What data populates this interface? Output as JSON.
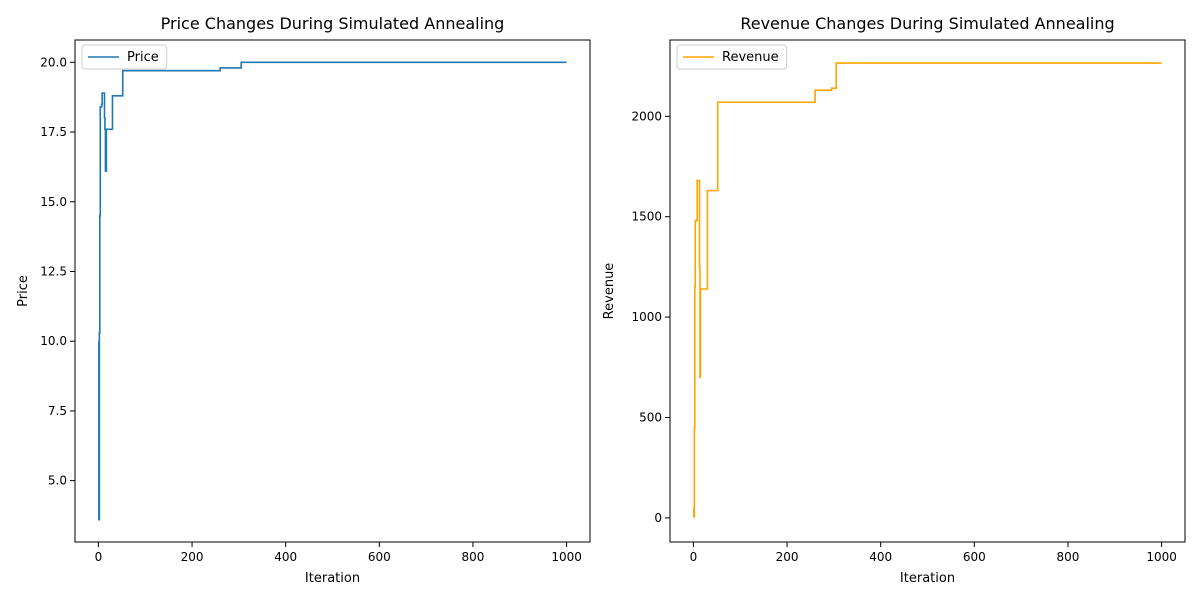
{
  "chart_data": [
    {
      "type": "line",
      "title": "Price Changes During Simulated Annealing",
      "xlabel": "Iteration",
      "ylabel": "Price",
      "xlim": [
        -50,
        1050
      ],
      "ylim": [
        2.8,
        20.8
      ],
      "xticks": [
        0,
        200,
        400,
        600,
        800,
        1000
      ],
      "yticks": [
        5.0,
        7.5,
        10.0,
        12.5,
        15.0,
        17.5,
        20.0
      ],
      "ytick_decimals": 1,
      "grid": false,
      "legend": "upper left",
      "color": "#1f77b4",
      "series": [
        {
          "name": "Price",
          "step": true,
          "points": [
            [
              0,
              10.0
            ],
            [
              1,
              3.6
            ],
            [
              2,
              10.3
            ],
            [
              3,
              14.5
            ],
            [
              4,
              18.4
            ],
            [
              7,
              18.5
            ],
            [
              8,
              18.9
            ],
            [
              12,
              18.9
            ],
            [
              13,
              18.0
            ],
            [
              14,
              17.6
            ],
            [
              15,
              16.1
            ],
            [
              17,
              17.6
            ],
            [
              30,
              18.8
            ],
            [
              52,
              19.7
            ],
            [
              260,
              19.8
            ],
            [
              305,
              20.0
            ],
            [
              1000,
              20.0
            ]
          ]
        }
      ]
    },
    {
      "type": "line",
      "title": "Revenue Changes During Simulated Annealing",
      "xlabel": "Iteration",
      "ylabel": "Revenue",
      "xlim": [
        -50,
        1050
      ],
      "ylim": [
        -120,
        2380
      ],
      "xticks": [
        0,
        200,
        400,
        600,
        800,
        1000
      ],
      "yticks": [
        0,
        500,
        1000,
        1500,
        2000
      ],
      "ytick_decimals": 0,
      "grid": false,
      "legend": "upper left",
      "color": "#ffa500",
      "series": [
        {
          "name": "Revenue",
          "step": true,
          "points": [
            [
              0,
              50
            ],
            [
              1,
              5
            ],
            [
              2,
              450
            ],
            [
              3,
              1150
            ],
            [
              4,
              1480
            ],
            [
              7,
              1480
            ],
            [
              8,
              1680
            ],
            [
              12,
              1680
            ],
            [
              13,
              1250
            ],
            [
              14,
              700
            ],
            [
              15,
              1140
            ],
            [
              30,
              1630
            ],
            [
              52,
              2070
            ],
            [
              260,
              2130
            ],
            [
              295,
              2140
            ],
            [
              305,
              2265
            ],
            [
              1000,
              2265
            ]
          ]
        }
      ]
    }
  ]
}
